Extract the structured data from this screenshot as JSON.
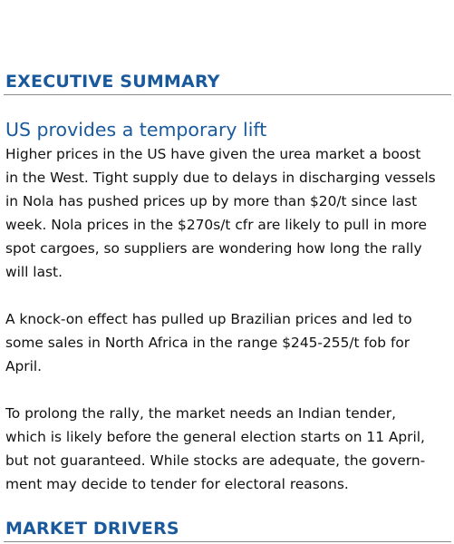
{
  "sections": [
    {
      "heading": "EXECUTIVE SUMMARY"
    },
    {
      "heading": "MARKET DRIVERS"
    }
  ],
  "article": {
    "title": "US provides a temporary lift",
    "paragraphs": [
      {
        "lines": [
          "Higher prices in the US have given the urea market a boost",
          "in the West. Tight supply due to delays in discharging vessels",
          "in Nola has pushed prices up by more than $20/t since last",
          "week. Nola prices in the $270s/t cfr are likely to pull in more",
          "spot cargoes, so suppliers are wondering how long the rally",
          "will last."
        ]
      },
      {
        "lines": [
          "A knock-on effect has pulled up Brazilian prices and led to",
          "some sales in North Africa in the range $245-255/t fob for",
          "April."
        ]
      },
      {
        "lines": [
          "To prolong the rally, the market needs an Indian tender,",
          "which is likely before the general election starts on 11 April,",
          "but not guaranteed. While stocks are adequate, the govern-",
          "ment may decide to tender for electoral reasons."
        ]
      }
    ]
  },
  "colors": {
    "heading": "#1a5a9c",
    "rule": "#8a8a8a",
    "body_text": "#111111",
    "background": "#ffffff"
  }
}
